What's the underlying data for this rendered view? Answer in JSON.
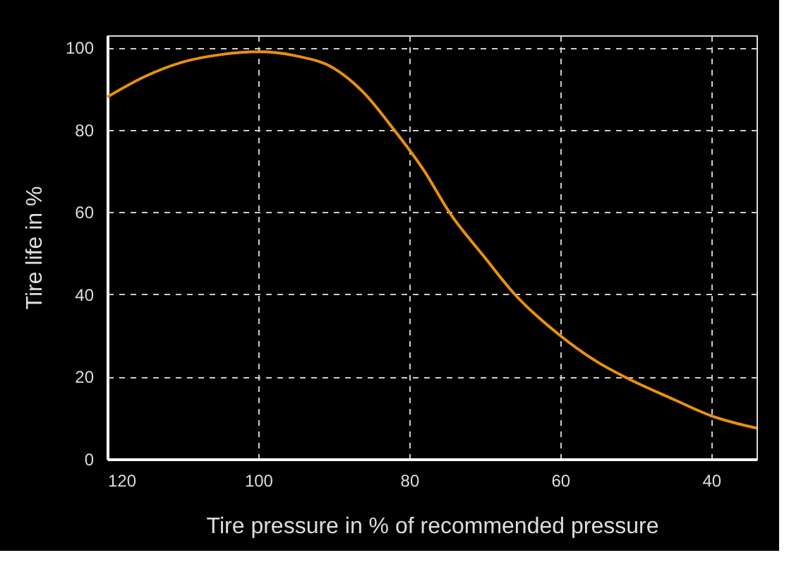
{
  "chart_data": {
    "type": "line",
    "xlabel": "Tire pressure in % of recommended pressure",
    "ylabel": "Tire life in %",
    "x": [
      120,
      115,
      110,
      105,
      100,
      95,
      90,
      86,
      82,
      78,
      74.7,
      70,
      66,
      60,
      55,
      51.5,
      45,
      40,
      34
    ],
    "series": [
      {
        "color": "#e8900f",
        "values": [
          88,
          93,
          96.5,
          98.3,
          99,
          98,
          95,
          89,
          80,
          70,
          60,
          49,
          40,
          30,
          23.5,
          20,
          14.5,
          10.5,
          7.5
        ]
      }
    ],
    "xlim": [
      120,
      34
    ],
    "ylim": [
      0,
      103
    ],
    "xticks": [
      120,
      100,
      80,
      60,
      40
    ],
    "yticks": [
      0,
      20,
      40,
      60,
      80,
      100
    ],
    "grid": true,
    "marker": "none",
    "line_style": "solid",
    "legend": false
  }
}
